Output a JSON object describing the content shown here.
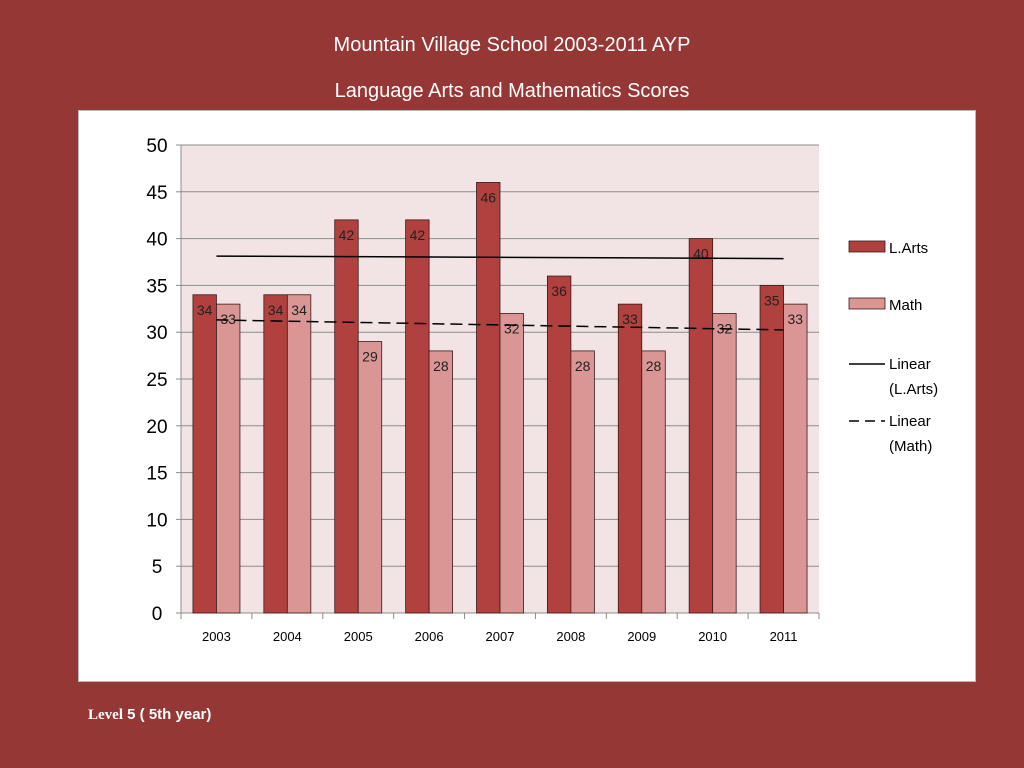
{
  "slide": {
    "title_line1": "Mountain Village School 2003-2011 AYP",
    "title_line2": "Language Arts and Mathematics Scores",
    "footer_level": "Level",
    "footer_rest": " 5 ( 5th year)"
  },
  "colors": {
    "background": "#953735",
    "plot_area": "#f2e4e5",
    "larts_bar": "#b0413e",
    "math_bar": "#d99694"
  },
  "chart_data": {
    "type": "bar",
    "title": "",
    "xlabel": "",
    "ylabel": "",
    "categories": [
      "2003",
      "2004",
      "2005",
      "2006",
      "2007",
      "2008",
      "2009",
      "2010",
      "2011"
    ],
    "series": [
      {
        "name": "L.Arts",
        "values": [
          34,
          34,
          42,
          42,
          46,
          36,
          33,
          40,
          35
        ]
      },
      {
        "name": "Math",
        "values": [
          33,
          34,
          29,
          28,
          32,
          28,
          28,
          32,
          33
        ]
      }
    ],
    "trendlines": [
      {
        "name": "Linear\n(L.Arts)",
        "series": "L.Arts",
        "style": "solid"
      },
      {
        "name": "Linear\n(Math)",
        "series": "Math",
        "style": "dashed"
      }
    ],
    "ylim": [
      0,
      50
    ],
    "yticks": [
      0,
      5,
      10,
      15,
      20,
      25,
      30,
      35,
      40,
      45,
      50
    ],
    "grid": true,
    "legend": "right"
  }
}
